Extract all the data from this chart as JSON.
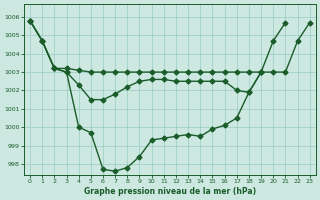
{
  "title": "Graphe pression niveau de la mer (hPa)",
  "background_color": "#cce8e0",
  "grid_color": "#99ccc2",
  "line_color": "#1a5c2a",
  "xlim": [
    -0.5,
    23.5
  ],
  "ylim": [
    997.4,
    1006.7
  ],
  "yticks": [
    998,
    999,
    1000,
    1001,
    1002,
    1003,
    1004,
    1005,
    1006
  ],
  "xticks": [
    0,
    1,
    2,
    3,
    4,
    5,
    6,
    7,
    8,
    9,
    10,
    11,
    12,
    13,
    14,
    15,
    16,
    17,
    18,
    19,
    20,
    21,
    22,
    23
  ],
  "line1": [
    1005.8,
    1004.7,
    1003.2,
    1003.2,
    1003.1,
    1003.0,
    1003.0,
    1003.0,
    1003.0,
    1003.0,
    1003.0,
    1003.0,
    1003.0,
    1003.0,
    1003.0,
    1003.0,
    1003.0,
    1003.0,
    1003.0,
    1003.0,
    1003.0,
    1003.0,
    1004.7,
    1005.7
  ],
  "line2": [
    1005.8,
    1004.7,
    1003.2,
    1003.0,
    1002.3,
    1001.5,
    1001.5,
    1001.8,
    1002.2,
    1002.5,
    1002.6,
    1002.6,
    1002.5,
    1002.5,
    1002.5,
    1002.5,
    1002.5,
    1002.0,
    1001.9,
    1003.0,
    null,
    null,
    null,
    null
  ],
  "line3": [
    1005.8,
    1004.7,
    1003.2,
    1003.0,
    1000.0,
    999.7,
    997.7,
    997.6,
    997.8,
    998.4,
    999.3,
    999.4,
    999.5,
    999.6,
    999.5,
    999.9,
    1000.1,
    1000.5,
    1001.9,
    1003.0,
    1004.7,
    1005.7,
    null,
    null
  ]
}
